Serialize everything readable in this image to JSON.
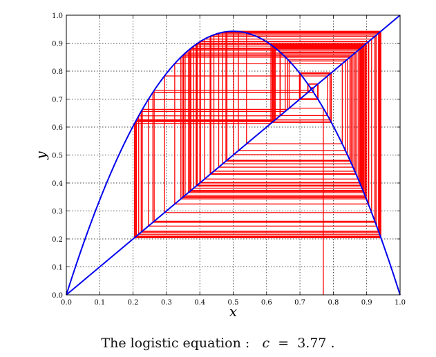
{
  "chart_data": {
    "type": "line",
    "title": "",
    "xlabel": "x",
    "ylabel": "y",
    "xlim": [
      0.0,
      1.0
    ],
    "ylim": [
      0.0,
      1.0
    ],
    "grid": true,
    "xticks": [
      "0.0",
      "0.1",
      "0.2",
      "0.3",
      "0.4",
      "0.5",
      "0.6",
      "0.7",
      "0.8",
      "0.9",
      "1.0"
    ],
    "yticks": [
      "0.0",
      "0.1",
      "0.2",
      "0.3",
      "0.4",
      "0.5",
      "0.6",
      "0.7",
      "0.8",
      "0.9",
      "1.0"
    ],
    "parameter_c": 3.77,
    "initial_x": 0.77,
    "cobweb_iterations": 100,
    "colors": {
      "curve": "#0000ee",
      "diagonal": "#0000ee",
      "cobweb": "#ff0000"
    }
  },
  "caption": {
    "prefix": "The logistic equation :",
    "var": "c",
    "equals": "=",
    "value": "3.77 ."
  }
}
